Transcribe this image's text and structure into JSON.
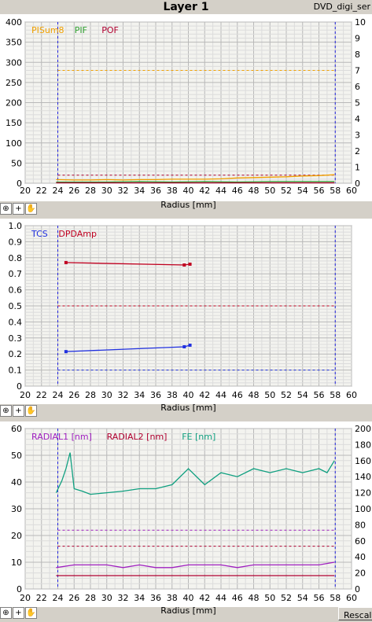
{
  "header": {
    "title": "Layer 1",
    "file_name": "DVD_digi_ser"
  },
  "rescale_label": "Rescale",
  "toolbar_icons": [
    "zoom-icon",
    "crosshair-icon",
    "hand-pan-icon"
  ],
  "chart_data": [
    {
      "type": "line",
      "xlabel": "Radius [mm]",
      "xlim": [
        20,
        60
      ],
      "ylim": [
        0,
        400
      ],
      "y2lim": [
        0,
        10
      ],
      "y_ticks": [
        0,
        50,
        100,
        150,
        200,
        250,
        300,
        350,
        400
      ],
      "y2_ticks": [
        0,
        1,
        2,
        3,
        4,
        5,
        6,
        7,
        8,
        9,
        10
      ],
      "grid": true,
      "legend": "top-left",
      "series": [
        {
          "name": "PISum8",
          "color": "#f0a000",
          "axis": "left",
          "x": [
            23.8,
            26,
            28,
            30,
            32,
            34,
            36,
            38,
            40,
            42,
            44,
            46,
            48,
            50,
            52,
            54,
            56,
            57.9
          ],
          "y": [
            9,
            8,
            8,
            9,
            8,
            9,
            9,
            10,
            10,
            10,
            11,
            13,
            14,
            15,
            16,
            18,
            19,
            21
          ]
        },
        {
          "name": "PIF",
          "color": "#30a030",
          "axis": "left",
          "x": [
            23.8,
            26,
            30,
            34,
            38,
            42,
            46,
            50,
            54,
            57.9
          ],
          "y": [
            3,
            3,
            3,
            4,
            3,
            4,
            3,
            4,
            4,
            4
          ]
        },
        {
          "name": "POF",
          "color": "#b00030",
          "axis": "left",
          "x": [
            23.8,
            30,
            40,
            50,
            57.9
          ],
          "y": [
            1,
            1,
            1,
            1,
            1
          ]
        }
      ],
      "reference_lines": [
        {
          "axis": "right",
          "value": 7,
          "color": "#f0a000"
        },
        {
          "axis": "right",
          "value": 0.5,
          "color": "#b00030"
        }
      ],
      "vertical_markers": [
        24,
        58
      ]
    },
    {
      "type": "line",
      "xlabel": "Radius [mm]",
      "xlim": [
        20,
        60
      ],
      "ylim": [
        0,
        1
      ],
      "y_ticks": [
        0,
        0.1,
        0.2,
        0.3,
        0.4,
        0.5,
        0.6,
        0.7,
        0.8,
        0.9,
        1.0
      ],
      "grid": true,
      "legend": "top-left",
      "series": [
        {
          "name": "TCS",
          "color": "#2030e0",
          "x": [
            25,
            39.5,
            40.2
          ],
          "y": [
            0.215,
            0.245,
            0.255
          ]
        },
        {
          "name": "DPDAmp",
          "color": "#c00020",
          "x": [
            25,
            39.5,
            40.2
          ],
          "y": [
            0.77,
            0.755,
            0.76
          ]
        }
      ],
      "reference_lines": [
        {
          "value": 0.5,
          "color": "#c00020"
        },
        {
          "value": 0.1,
          "color": "#2030e0"
        }
      ],
      "vertical_markers": [
        24,
        58
      ]
    },
    {
      "type": "line",
      "xlabel": "Radius [mm]",
      "xlim": [
        20,
        60
      ],
      "ylim": [
        0,
        60
      ],
      "y2lim": [
        0,
        200
      ],
      "y_ticks": [
        0,
        10,
        20,
        30,
        40,
        50,
        60
      ],
      "y2_ticks": [
        0,
        20,
        40,
        60,
        80,
        100,
        120,
        140,
        160,
        180,
        200
      ],
      "grid": true,
      "legend": "top-left",
      "series": [
        {
          "name": "RADIAL1 [nm]",
          "color": "#a020c0",
          "axis": "left",
          "x": [
            23.8,
            26,
            28,
            30,
            32,
            34,
            36,
            38,
            40,
            42,
            44,
            46,
            48,
            50,
            52,
            54,
            56,
            57.9
          ],
          "y": [
            8,
            9,
            9,
            9,
            8,
            9,
            8,
            8,
            9,
            9,
            9,
            8,
            9,
            9,
            9,
            9,
            9,
            10
          ]
        },
        {
          "name": "RADIAL2 [nm]",
          "color": "#b00030",
          "axis": "left",
          "x": [
            23.8,
            30,
            40,
            50,
            57.9
          ],
          "y": [
            5,
            5,
            5,
            5,
            5
          ]
        },
        {
          "name": "FE [nm]",
          "color": "#10a080",
          "axis": "right",
          "x": [
            23.8,
            24.5,
            25,
            25.5,
            26,
            27,
            28,
            30,
            32,
            34,
            36,
            38,
            40,
            42,
            44,
            46,
            48,
            50,
            52,
            54,
            56,
            57,
            57.9
          ],
          "y": [
            120,
            135,
            150,
            170,
            125,
            122,
            118,
            120,
            122,
            125,
            125,
            130,
            150,
            130,
            145,
            140,
            150,
            145,
            150,
            145,
            150,
            145,
            160
          ]
        }
      ],
      "reference_lines": [
        {
          "axis": "left",
          "value": 22,
          "color": "#a020c0"
        },
        {
          "axis": "left",
          "value": 16,
          "color": "#b00030"
        }
      ],
      "vertical_markers": [
        24,
        58
      ]
    }
  ]
}
